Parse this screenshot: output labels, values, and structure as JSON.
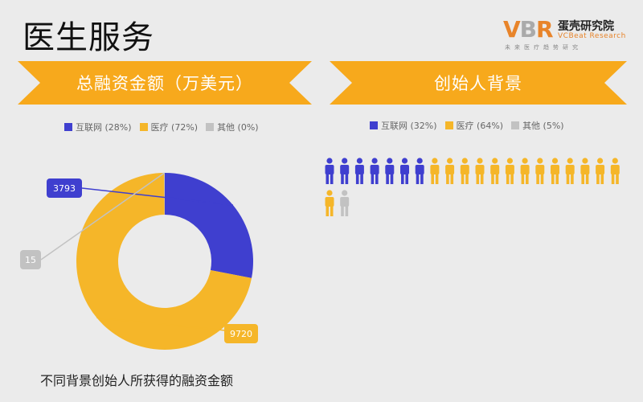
{
  "page": {
    "title": "医生服务"
  },
  "logo": {
    "mark_v": "V",
    "mark_b": "B",
    "mark_r": "R",
    "name_cn": "蛋壳研究院",
    "name_en": "VCBeat Research",
    "tagline": "未来医疗趋势研究"
  },
  "left_panel": {
    "banner": "总融资金额（万美元）",
    "caption": "不同背景创始人所获得的融资金额",
    "legend": [
      {
        "label": "互联网 (28%)",
        "color": "#3f3fcf"
      },
      {
        "label": "医疗 (72%)",
        "color": "#f5b629"
      },
      {
        "label": "其他 (0%)",
        "color": "#c2c2c2"
      }
    ]
  },
  "right_panel": {
    "banner": "创始人背景",
    "legend": [
      {
        "label": "互联网 (32%)",
        "color": "#3f3fcf"
      },
      {
        "label": "医疗 (64%)",
        "color": "#f5b629"
      },
      {
        "label": "其他 (5%)",
        "color": "#c2c2c2"
      }
    ]
  },
  "colors": {
    "banner": "#f7a91c",
    "internet": "#3f3fcf",
    "medical": "#f5b629",
    "other": "#c2c2c2"
  },
  "chart_data": [
    {
      "type": "pie",
      "subtype": "donut",
      "categories": [
        "互联网",
        "医疗",
        "其他"
      ],
      "values": [
        3793,
        9720,
        15
      ],
      "data_labels": [
        "3793",
        "9720",
        "15"
      ],
      "colors": [
        "#3f3fcf",
        "#f5b629",
        "#c2c2c2"
      ]
    },
    {
      "type": "pictogram",
      "categories": [
        "互联网",
        "医疗",
        "其他"
      ],
      "values": [
        7,
        14,
        1
      ],
      "colors": [
        "#3f3fcf",
        "#f5b629",
        "#c2c2c2"
      ]
    }
  ]
}
